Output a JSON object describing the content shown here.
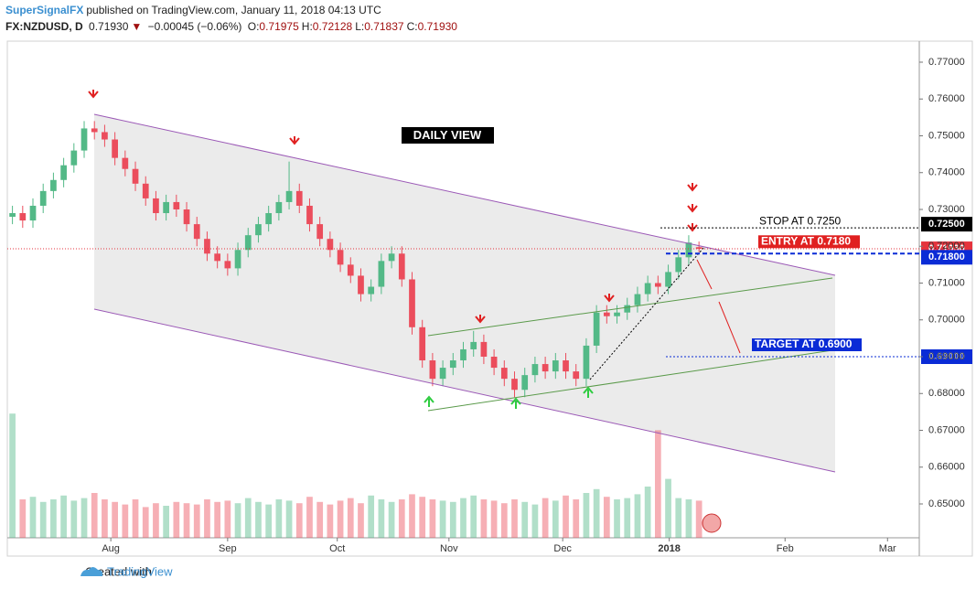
{
  "header": {
    "author": "SuperSignalFX",
    "published": "published on TradingView.com, January 11, 2018 04:13 UTC",
    "symbol": "FX:NZDUSD, D",
    "last": "0.71930",
    "change": "−0.00045 (−0.06%)",
    "ohlc": [
      {
        "key": "O:",
        "value": "0.71975"
      },
      {
        "key": "H:",
        "value": "0.72128"
      },
      {
        "key": "L:",
        "value": "0.71837"
      },
      {
        "key": "C:",
        "value": "0.71930"
      }
    ]
  },
  "footer": {
    "created": "Created with",
    "brand": "TradingView"
  },
  "chart_data": {
    "type": "candlestick",
    "annotation": "DAILY VIEW",
    "up_color": "#53b987",
    "down_color": "#eb4d5c",
    "open": [
      0.728,
      0.729,
      0.727,
      0.731,
      0.735,
      0.738,
      0.742,
      0.746,
      0.752,
      0.751,
      0.749,
      0.744,
      0.741,
      0.737,
      0.733,
      0.729,
      0.732,
      0.73,
      0.726,
      0.722,
      0.718,
      0.716,
      0.714,
      0.719,
      0.723,
      0.726,
      0.729,
      0.732,
      0.735,
      0.731,
      0.726,
      0.722,
      0.719,
      0.715,
      0.712,
      0.707,
      0.709,
      0.716,
      0.718,
      0.711,
      0.698,
      0.689,
      0.684,
      0.687,
      0.689,
      0.692,
      0.694,
      0.69,
      0.687,
      0.684,
      0.681,
      0.685,
      0.688,
      0.686,
      0.689,
      0.686,
      0.684,
      0.693,
      0.702,
      0.701,
      0.702,
      0.704,
      0.707,
      0.71,
      0.709,
      0.713,
      0.717,
      0.71975
    ],
    "high": [
      0.731,
      0.731,
      0.733,
      0.737,
      0.74,
      0.744,
      0.748,
      0.754,
      0.754,
      0.753,
      0.751,
      0.746,
      0.743,
      0.739,
      0.735,
      0.734,
      0.734,
      0.732,
      0.728,
      0.724,
      0.72,
      0.718,
      0.721,
      0.725,
      0.728,
      0.731,
      0.734,
      0.743,
      0.737,
      0.733,
      0.728,
      0.724,
      0.721,
      0.717,
      0.714,
      0.711,
      0.718,
      0.72,
      0.72,
      0.713,
      0.7,
      0.691,
      0.689,
      0.691,
      0.694,
      0.697,
      0.696,
      0.692,
      0.689,
      0.686,
      0.687,
      0.69,
      0.69,
      0.691,
      0.691,
      0.688,
      0.695,
      0.704,
      0.704,
      0.704,
      0.706,
      0.709,
      0.712,
      0.712,
      0.715,
      0.719,
      0.723,
      0.72128
    ],
    "low": [
      0.726,
      0.725,
      0.725,
      0.729,
      0.733,
      0.736,
      0.74,
      0.744,
      0.749,
      0.747,
      0.742,
      0.739,
      0.735,
      0.731,
      0.727,
      0.727,
      0.728,
      0.724,
      0.72,
      0.716,
      0.714,
      0.712,
      0.712,
      0.717,
      0.721,
      0.724,
      0.727,
      0.73,
      0.729,
      0.724,
      0.72,
      0.717,
      0.713,
      0.71,
      0.705,
      0.705,
      0.707,
      0.714,
      0.709,
      0.696,
      0.687,
      0.682,
      0.682,
      0.685,
      0.687,
      0.69,
      0.688,
      0.685,
      0.682,
      0.679,
      0.679,
      0.683,
      0.684,
      0.684,
      0.684,
      0.682,
      0.682,
      0.691,
      0.699,
      0.699,
      0.7,
      0.702,
      0.705,
      0.707,
      0.707,
      0.711,
      0.715,
      0.71837
    ],
    "close": [
      0.729,
      0.727,
      0.731,
      0.735,
      0.738,
      0.742,
      0.746,
      0.752,
      0.751,
      0.749,
      0.744,
      0.741,
      0.737,
      0.733,
      0.729,
      0.732,
      0.73,
      0.726,
      0.722,
      0.718,
      0.716,
      0.714,
      0.719,
      0.723,
      0.726,
      0.729,
      0.732,
      0.735,
      0.731,
      0.726,
      0.722,
      0.719,
      0.715,
      0.712,
      0.707,
      0.709,
      0.716,
      0.718,
      0.711,
      0.698,
      0.689,
      0.684,
      0.687,
      0.689,
      0.692,
      0.694,
      0.69,
      0.687,
      0.684,
      0.681,
      0.685,
      0.688,
      0.686,
      0.689,
      0.686,
      0.684,
      0.693,
      0.702,
      0.701,
      0.702,
      0.704,
      0.707,
      0.71,
      0.709,
      0.713,
      0.717,
      0.721,
      0.7193
    ],
    "volume": [
      97,
      30,
      32,
      28,
      30,
      33,
      29,
      31,
      35,
      30,
      28,
      26,
      30,
      24,
      27,
      25,
      28,
      27,
      26,
      30,
      28,
      29,
      27,
      31,
      28,
      26,
      30,
      29,
      27,
      32,
      28,
      26,
      29,
      31,
      27,
      33,
      30,
      28,
      30,
      34,
      32,
      30,
      29,
      28,
      31,
      33,
      30,
      29,
      27,
      30,
      28,
      26,
      31,
      29,
      33,
      30,
      35,
      38,
      32,
      30,
      31,
      34,
      40,
      84,
      46,
      31,
      30,
      29
    ],
    "vlim": [
      0,
      100
    ],
    "xlim": [
      -0.5,
      88.5
    ],
    "xticks": [
      {
        "value": 9.6,
        "label": "Aug"
      },
      {
        "value": 21.0,
        "label": "Sep"
      },
      {
        "value": 31.7,
        "label": "Oct"
      },
      {
        "value": 42.6,
        "label": "Nov"
      },
      {
        "value": 53.7,
        "label": "Dec"
      },
      {
        "value": 64.1,
        "label": "2018"
      },
      {
        "value": 75.4,
        "label": "Feb"
      },
      {
        "value": 85.4,
        "label": "Mar"
      }
    ],
    "ylim": [
      0.64081,
      0.77571
    ],
    "yticks": [
      {
        "value": 0.65,
        "label": "0.65000"
      },
      {
        "value": 0.66,
        "label": "0.66000"
      },
      {
        "value": 0.67,
        "label": "0.67000"
      },
      {
        "value": 0.68,
        "label": "0.68000"
      },
      {
        "value": 0.69,
        "label": "0.69000"
      },
      {
        "value": 0.7,
        "label": "0.70000"
      },
      {
        "value": 0.71,
        "label": "0.71000"
      },
      {
        "value": 0.72,
        "label": "0.72000"
      },
      {
        "value": 0.73,
        "label": "0.73000"
      },
      {
        "value": 0.74,
        "label": "0.74000"
      },
      {
        "value": 0.75,
        "label": "0.75000"
      },
      {
        "value": 0.76,
        "label": "0.76000"
      },
      {
        "value": 0.77,
        "label": "0.77000"
      }
    ],
    "levels": [
      {
        "name": "STOP AT 0.7250",
        "value": 0.725,
        "label": "0.72500",
        "color": "#000000"
      },
      {
        "name": "ENTRY AT 0.7180",
        "value": 0.718,
        "label": "0.71800",
        "color": "#0a2bd6"
      },
      {
        "name": "TARGET AT 0.6900",
        "value": 0.69,
        "label": "0.69000",
        "color": "#0a2bd6"
      }
    ],
    "last_price": {
      "value": 0.7193,
      "label": "0.71930",
      "color": "#e5333c"
    }
  }
}
